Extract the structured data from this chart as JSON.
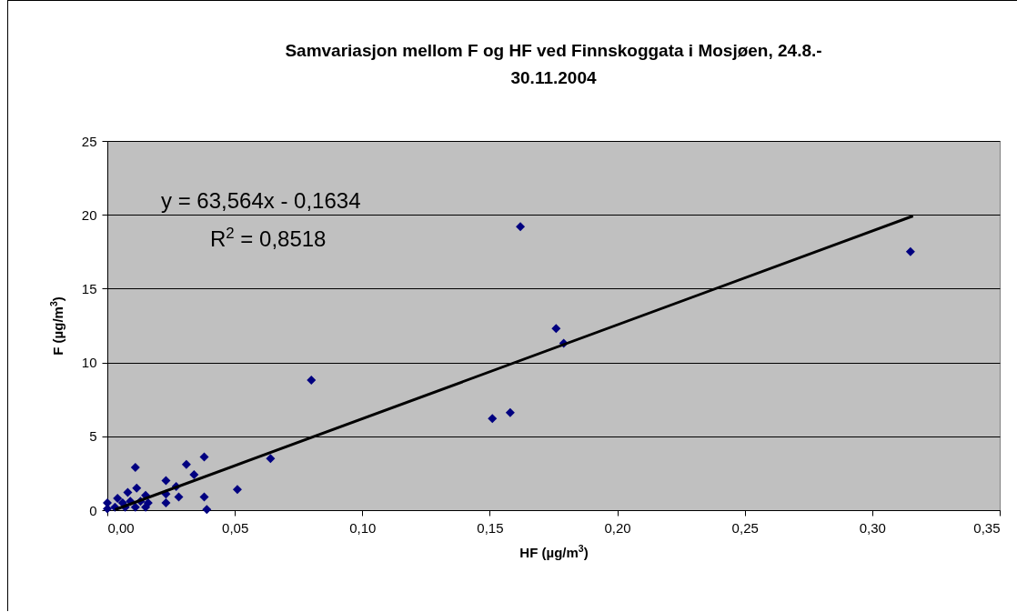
{
  "chart_data": {
    "type": "scatter",
    "title": "Samvariasjon mellom F og HF ved Finnskoggata i Mosjøen, 24.8.-30.11.2004",
    "xlabel": "HF (µg/m$^{3}$)",
    "ylabel": "F (µg/m$^{3}$)",
    "xlim": [
      0,
      0.35
    ],
    "xticks": [
      {
        "value": 0,
        "label": "0,00"
      },
      {
        "value": 0.05,
        "label": "0,05"
      },
      {
        "value": 0.1,
        "label": "0,10"
      },
      {
        "value": 0.15,
        "label": "0,15"
      },
      {
        "value": 0.2,
        "label": "0,20"
      },
      {
        "value": 0.25,
        "label": "0,25"
      },
      {
        "value": 0.3,
        "label": "0,30"
      },
      {
        "value": 0.35,
        "label": "0,35"
      }
    ],
    "ylim": [
      0,
      25
    ],
    "yticks": [
      0,
      5,
      10,
      15,
      20,
      25
    ],
    "grid": "y",
    "annotations": [
      "y = 63,564x - 0,1634",
      "R$^{2}$ = 0,8518"
    ],
    "series": [
      {
        "marker": "diamond",
        "color": "#000080",
        "x": [
          0.08,
          0.151,
          0.158,
          0.162,
          0.176,
          0.179,
          0.315,
          0.064,
          0.051,
          0.011,
          0.023,
          0.031,
          0.038,
          0.034,
          0.027,
          0.023,
          0.028,
          0.023,
          0.038,
          0.039,
          0.0115,
          0.008,
          0.015,
          0.015,
          0.011,
          0.004,
          0.0,
          0.0,
          0.007,
          0.003,
          0.009,
          0.013,
          0.016,
          0.006
        ],
        "values": [
          8.8,
          6.2,
          6.6,
          19.2,
          12.3,
          11.3,
          17.5,
          3.5,
          1.4,
          2.9,
          2.0,
          3.1,
          3.6,
          2.4,
          1.6,
          1.1,
          0.9,
          0.5,
          0.9,
          0.05,
          1.5,
          1.2,
          1.0,
          0.2,
          0.2,
          0.8,
          0.5,
          0.1,
          0.2,
          0.2,
          0.6,
          0.6,
          0.5,
          0.5
        ]
      },
      {
        "type": "line",
        "marker": "none",
        "color": "#000000",
        "x": [
          0.003,
          0.316
        ],
        "values": [
          0.03,
          19.92
        ]
      }
    ]
  }
}
